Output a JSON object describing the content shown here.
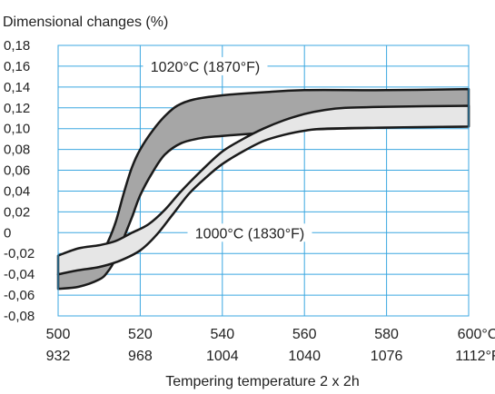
{
  "chart_data": {
    "type": "area",
    "title": "",
    "ylabel": "Dimensional changes (%)",
    "xlabel": "Tempering temperature 2 x 2h",
    "xlim": [
      500,
      600
    ],
    "ylim": [
      -0.08,
      0.18
    ],
    "grid": true,
    "x_ticks_c": [
      "500",
      "520",
      "540",
      "560",
      "580",
      "600°C"
    ],
    "x_ticks_f": [
      "932",
      "968",
      "1004",
      "1040",
      "1076",
      "1112°F"
    ],
    "y_ticks": [
      "0,18",
      "0,16",
      "0,14",
      "0,12",
      "0,10",
      "0,08",
      "0,06",
      "0,04",
      "0,02",
      "0",
      "-0,02",
      "-0,04",
      "-0,06",
      "-0,08"
    ],
    "series": [
      {
        "name": "1020°C (1870°F)",
        "color": "#a6a6a6",
        "upper": [
          [
            500,
            -0.04
          ],
          [
            505,
            -0.033
          ],
          [
            510,
            -0.025
          ],
          [
            512,
            -0.01
          ],
          [
            514,
            0.01
          ],
          [
            516,
            0.038
          ],
          [
            518,
            0.063
          ],
          [
            520,
            0.08
          ],
          [
            523,
            0.098
          ],
          [
            526,
            0.112
          ],
          [
            529,
            0.122
          ],
          [
            533,
            0.128
          ],
          [
            540,
            0.132
          ],
          [
            550,
            0.135
          ],
          [
            560,
            0.137
          ],
          [
            580,
            0.137
          ],
          [
            600,
            0.138
          ]
        ],
        "lower": [
          [
            500,
            -0.054
          ],
          [
            505,
            -0.052
          ],
          [
            510,
            -0.045
          ],
          [
            512,
            -0.038
          ],
          [
            514,
            -0.025
          ],
          [
            516,
            -0.005
          ],
          [
            518,
            0.015
          ],
          [
            520,
            0.036
          ],
          [
            523,
            0.058
          ],
          [
            526,
            0.075
          ],
          [
            530,
            0.086
          ],
          [
            535,
            0.091
          ],
          [
            540,
            0.093
          ],
          [
            550,
            0.096
          ],
          [
            560,
            0.099
          ],
          [
            580,
            0.101
          ],
          [
            600,
            0.102
          ]
        ]
      },
      {
        "name": "1000°C (1830°F)",
        "color": "#e6e6e6",
        "upper": [
          [
            500,
            -0.022
          ],
          [
            505,
            -0.015
          ],
          [
            510,
            -0.012
          ],
          [
            514,
            -0.008
          ],
          [
            518,
            0.0
          ],
          [
            522,
            0.008
          ],
          [
            526,
            0.022
          ],
          [
            530,
            0.04
          ],
          [
            535,
            0.06
          ],
          [
            540,
            0.078
          ],
          [
            545,
            0.09
          ],
          [
            550,
            0.1
          ],
          [
            555,
            0.108
          ],
          [
            560,
            0.114
          ],
          [
            565,
            0.118
          ],
          [
            570,
            0.12
          ],
          [
            580,
            0.121
          ],
          [
            600,
            0.122
          ]
        ],
        "lower": [
          [
            500,
            -0.04
          ],
          [
            505,
            -0.036
          ],
          [
            510,
            -0.033
          ],
          [
            515,
            -0.027
          ],
          [
            520,
            -0.017
          ],
          [
            524,
            -0.002
          ],
          [
            528,
            0.018
          ],
          [
            532,
            0.038
          ],
          [
            536,
            0.053
          ],
          [
            540,
            0.066
          ],
          [
            545,
            0.078
          ],
          [
            550,
            0.088
          ],
          [
            555,
            0.094
          ],
          [
            560,
            0.098
          ],
          [
            565,
            0.1
          ],
          [
            580,
            0.101
          ],
          [
            600,
            0.102
          ]
        ]
      }
    ]
  }
}
